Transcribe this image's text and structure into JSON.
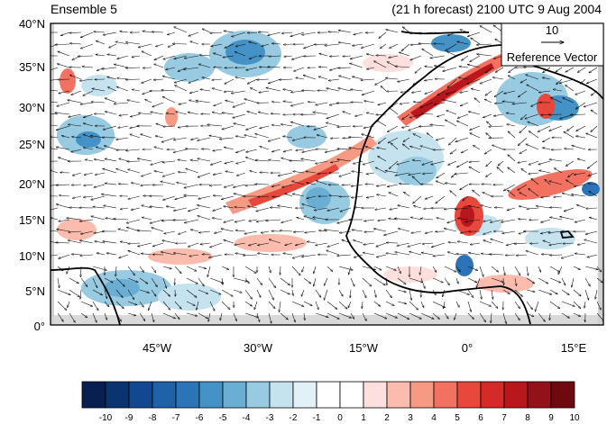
{
  "header": {
    "left_title": "Ensemble 5",
    "right_title": "(21 h forecast) 2100 UTC 9 Aug 2004"
  },
  "reference_vector": {
    "value": "10",
    "label": "Reference Vector"
  },
  "axes": {
    "y_ticks": [
      "40°N",
      "35°N",
      "30°N",
      "25°N",
      "20°N",
      "15°N",
      "10°N",
      "5°N",
      "0°"
    ],
    "x_ticks": [
      "45°W",
      "30°W",
      "15°W",
      "0°",
      "15°E"
    ]
  },
  "colorbar": {
    "labels": [
      "-10",
      "-9",
      "-8",
      "-7",
      "-6",
      "-5",
      "-4",
      "-3",
      "-2",
      "-1",
      "0",
      "1",
      "2",
      "3",
      "4",
      "5",
      "6",
      "7",
      "8",
      "9",
      "10"
    ],
    "colors": [
      "#08204f",
      "#0a3470",
      "#12488f",
      "#1f62a8",
      "#2b74b8",
      "#4592c6",
      "#6aafd3",
      "#98cbe2",
      "#c5e3ef",
      "#e2f1f8",
      "#ffffff",
      "#ffffff",
      "#fde0dd",
      "#fbbcae",
      "#f79a84",
      "#f27160",
      "#e8473c",
      "#d42a2a",
      "#b8171e",
      "#931118",
      "#6e0a0f"
    ]
  }
}
